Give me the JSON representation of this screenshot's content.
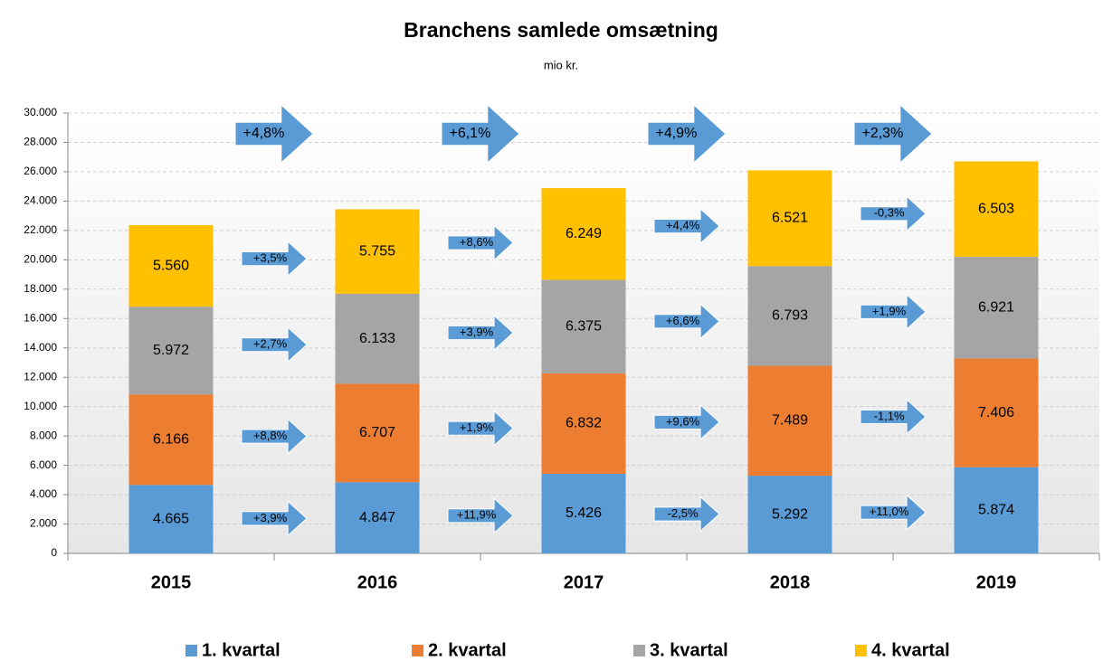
{
  "chart_data": {
    "type": "stacked-bar",
    "title": "Branchens samlede omsætning",
    "subtitle": "mio kr.",
    "categories": [
      "2015",
      "2016",
      "2017",
      "2018",
      "2019"
    ],
    "series": [
      {
        "name": "1. kvartal",
        "color": "#5b9bd5",
        "values": [
          4665,
          4847,
          5426,
          5292,
          5874
        ],
        "value_labels": [
          "4.665",
          "4.847",
          "5.426",
          "5.292",
          "5.874"
        ]
      },
      {
        "name": "2. kvartal",
        "color": "#ed7d31",
        "values": [
          6166,
          6707,
          6832,
          7489,
          7406
        ],
        "value_labels": [
          "6.166",
          "6.707",
          "6.832",
          "7.489",
          "7.406"
        ]
      },
      {
        "name": "3. kvartal",
        "color": "#a5a5a5",
        "values": [
          5972,
          6133,
          6375,
          6793,
          6921
        ],
        "value_labels": [
          "5.972",
          "6.133",
          "6.375",
          "6.793",
          "6.921"
        ]
      },
      {
        "name": "4. kvartal",
        "color": "#ffc000",
        "values": [
          5560,
          5755,
          6249,
          6521,
          6503
        ],
        "value_labels": [
          "5.560",
          "5.755",
          "6.249",
          "6.521",
          "6.503"
        ]
      }
    ],
    "annotations": [
      {
        "total": "+4,8%",
        "quarters": [
          "+3,9%",
          "+8,8%",
          "+2,7%",
          "+3,5%"
        ]
      },
      {
        "total": "+6,1%",
        "quarters": [
          "+11,9%",
          "+1,9%",
          "+3,9%",
          "+8,6%"
        ]
      },
      {
        "total": "+4,9%",
        "quarters": [
          "-2,5%",
          "+9,6%",
          "+6,6%",
          "+4,4%"
        ]
      },
      {
        "total": "+2,3%",
        "quarters": [
          "+11,0%",
          "-1,1%",
          "+1,9%",
          "-0,3%"
        ]
      }
    ],
    "arrow_color": "#5b9bd5",
    "ylim": [
      0,
      30000
    ],
    "yticks": [
      0,
      {
        "value": 2000,
        "label": "2.000"
      },
      {
        "value": 4000,
        "label": "4.000"
      },
      {
        "value": 6000,
        "label": "6.000"
      },
      {
        "value": 8000,
        "label": "8.000"
      },
      {
        "value": 10000,
        "label": "10.000"
      },
      {
        "value": 12000,
        "label": "12.000"
      },
      {
        "value": 14000,
        "label": "14.000"
      },
      {
        "value": 16000,
        "label": "16.000"
      },
      {
        "value": 18000,
        "label": "18.000"
      },
      {
        "value": 20000,
        "label": "20.000"
      },
      {
        "value": 22000,
        "label": "22.000"
      },
      {
        "value": 24000,
        "label": "24.000"
      },
      {
        "value": 26000,
        "label": "26.000"
      },
      {
        "value": 28000,
        "label": "28.000"
      },
      {
        "value": 30000,
        "label": "30.000"
      }
    ],
    "grid": true,
    "legend": "bottom"
  }
}
